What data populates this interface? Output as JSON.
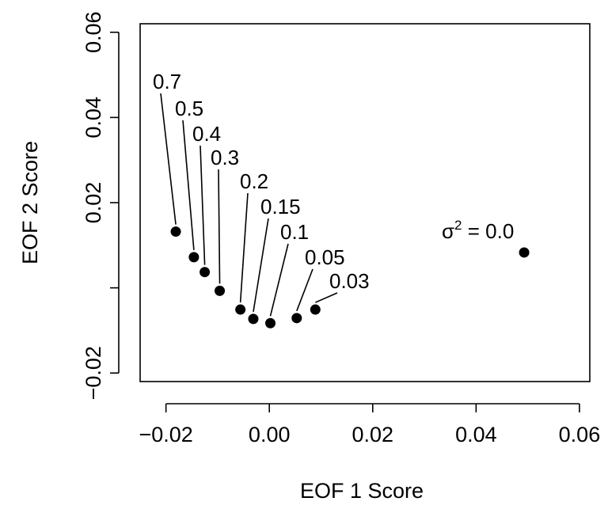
{
  "chart_data": {
    "type": "scatter",
    "title": "",
    "xlabel": "EOF 1 Score",
    "ylabel": "EOF 2 Score",
    "xlim": [
      -0.025,
      0.062
    ],
    "ylim": [
      -0.022,
      0.062
    ],
    "x_ticks": [
      -0.02,
      0.0,
      0.02,
      0.04,
      0.06
    ],
    "x_tick_labels": [
      "−0.02",
      "0.00",
      "0.02",
      "0.04",
      "0.06"
    ],
    "y_ticks": [
      -0.02,
      0.0,
      0.02,
      0.04,
      0.06
    ],
    "y_tick_labels": [
      "−0.02",
      "",
      "0.02",
      "0.04",
      "0.06"
    ],
    "grid": false,
    "points": [
      {
        "x": -0.0181,
        "y": 0.0132,
        "label": "0.7"
      },
      {
        "x": -0.0146,
        "y": 0.0072,
        "label": "0.5"
      },
      {
        "x": -0.0125,
        "y": 0.0037,
        "label": "0.4"
      },
      {
        "x": -0.0096,
        "y": -0.0007,
        "label": "0.3"
      },
      {
        "x": -0.0056,
        "y": -0.0051,
        "label": "0.2"
      },
      {
        "x": -0.0031,
        "y": -0.0073,
        "label": "0.15"
      },
      {
        "x": 0.0002,
        "y": -0.0083,
        "label": "0.1"
      },
      {
        "x": 0.0053,
        "y": -0.0071,
        "label": "0.05"
      },
      {
        "x": 0.0089,
        "y": -0.0051,
        "label": "0.03"
      },
      {
        "x": 0.0493,
        "y": 0.0083,
        "label": ""
      }
    ],
    "annotation": {
      "symbol": "σ",
      "superscript": "2",
      "text": " = 0.0"
    }
  }
}
